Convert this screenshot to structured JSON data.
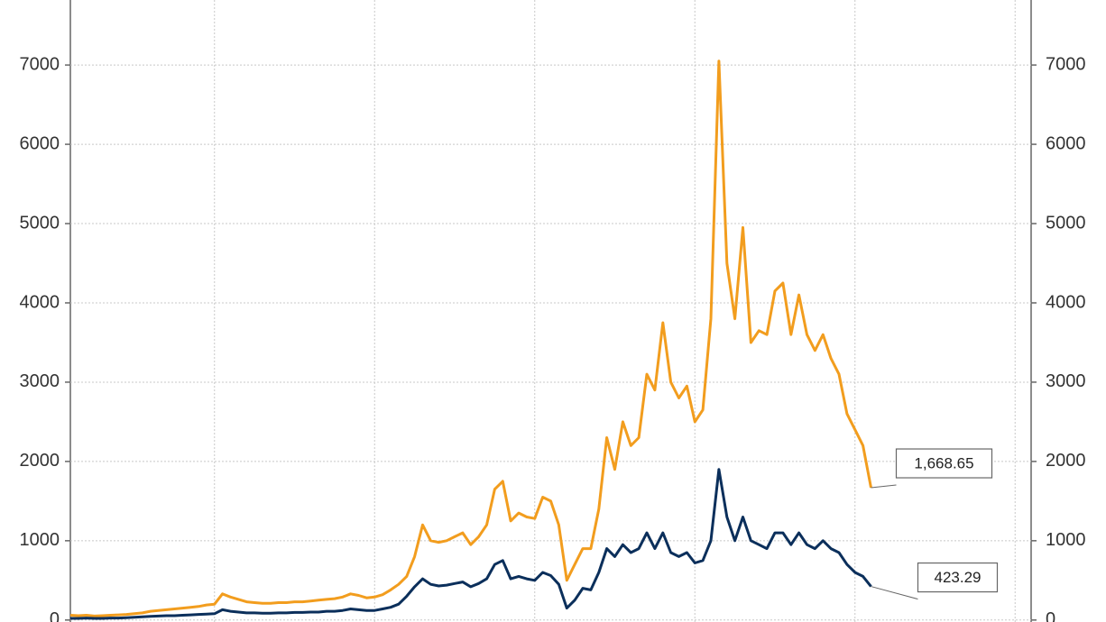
{
  "chart_data": {
    "type": "line",
    "x": [
      0,
      1,
      2,
      3,
      4,
      5,
      6,
      7,
      8,
      9,
      10,
      11,
      12,
      13,
      14,
      15,
      16,
      17,
      18,
      19,
      20,
      21,
      22,
      23,
      24,
      25,
      26,
      27,
      28,
      29,
      30,
      31,
      32,
      33,
      34,
      35,
      36,
      37,
      38,
      39,
      40,
      41,
      42,
      43,
      44,
      45,
      46,
      47,
      48,
      49,
      50,
      51,
      52,
      53,
      54,
      55,
      56,
      57,
      58,
      59,
      60,
      61,
      62,
      63,
      64,
      65,
      66,
      67,
      68,
      69,
      70,
      71,
      72,
      73,
      74,
      75,
      76,
      77,
      78,
      79,
      80,
      81,
      82,
      83,
      84,
      85,
      86,
      87,
      88,
      89,
      90,
      91,
      92,
      93,
      94,
      95,
      96,
      97,
      98,
      99,
      100
    ],
    "xlim": [
      0,
      120
    ],
    "xticks": [
      18,
      38,
      58,
      78,
      98,
      118
    ],
    "ylim": [
      -25,
      7820
    ],
    "yticks": [
      0,
      1000,
      2000,
      3000,
      4000,
      5000,
      6000,
      7000
    ],
    "y2lim": [
      -25,
      7820
    ],
    "y2ticks": [
      0,
      1000,
      2000,
      3000,
      4000,
      5000,
      6000,
      7000
    ],
    "grid": true,
    "series": [
      {
        "color": "#f29d1e",
        "values": [
          60,
          55,
          60,
          50,
          55,
          60,
          65,
          70,
          80,
          90,
          110,
          120,
          130,
          140,
          150,
          160,
          170,
          190,
          200,
          330,
          290,
          260,
          230,
          220,
          210,
          210,
          220,
          220,
          230,
          230,
          240,
          250,
          260,
          270,
          290,
          330,
          310,
          280,
          290,
          320,
          380,
          450,
          550,
          800,
          1200,
          1000,
          980,
          1000,
          1050,
          1100,
          950,
          1050,
          1200,
          1650,
          1750,
          1250,
          1350,
          1300,
          1280,
          1550,
          1500,
          1200,
          500,
          700,
          900,
          900,
          1400,
          2300,
          1900,
          2500,
          2200,
          2300,
          3100,
          2900,
          3750,
          3000,
          2800,
          2950,
          2500,
          2650,
          3800,
          7050,
          4500,
          3800,
          4950,
          3500,
          3650,
          3600,
          4150,
          4250,
          3600,
          4100,
          3600,
          3400,
          3600,
          3300,
          3100,
          2600,
          2400,
          2200,
          1668.65
        ],
        "value_labels": [
          null,
          null,
          null,
          null,
          null,
          null,
          null,
          null,
          null,
          null,
          null,
          null,
          null,
          null,
          null,
          null,
          null,
          null,
          null,
          null,
          null,
          null,
          null,
          null,
          null,
          null,
          null,
          null,
          null,
          null,
          null,
          null,
          null,
          null,
          null,
          null,
          null,
          null,
          null,
          null,
          null,
          null,
          null,
          null,
          null,
          null,
          null,
          null,
          null,
          null,
          null,
          null,
          null,
          null,
          null,
          null,
          null,
          null,
          null,
          null,
          null,
          null,
          null,
          null,
          null,
          null,
          null,
          null,
          null,
          null,
          null,
          null,
          null,
          null,
          null,
          null,
          null,
          null,
          null,
          null,
          null,
          null,
          null,
          null,
          null,
          null,
          null,
          null,
          null,
          null,
          null,
          null,
          null,
          null,
          null,
          null,
          null,
          null,
          null,
          null,
          "1,668.65"
        ]
      },
      {
        "color": "#0b2f5b",
        "values": [
          20,
          20,
          25,
          20,
          20,
          25,
          25,
          30,
          35,
          40,
          45,
          50,
          55,
          55,
          60,
          65,
          70,
          75,
          80,
          130,
          110,
          100,
          90,
          90,
          85,
          85,
          90,
          90,
          95,
          95,
          100,
          100,
          110,
          110,
          120,
          140,
          130,
          120,
          120,
          140,
          160,
          200,
          300,
          420,
          520,
          450,
          430,
          440,
          460,
          480,
          420,
          460,
          520,
          700,
          750,
          520,
          550,
          520,
          500,
          600,
          560,
          450,
          150,
          250,
          400,
          380,
          600,
          900,
          800,
          950,
          850,
          900,
          1100,
          900,
          1100,
          850,
          800,
          850,
          720,
          750,
          1000,
          1900,
          1300,
          1000,
          1300,
          1000,
          950,
          900,
          1100,
          1100,
          950,
          1100,
          950,
          900,
          1000,
          900,
          850,
          700,
          600,
          550,
          423.29
        ],
        "value_labels": [
          null,
          null,
          null,
          null,
          null,
          null,
          null,
          null,
          null,
          null,
          null,
          null,
          null,
          null,
          null,
          null,
          null,
          null,
          null,
          null,
          null,
          null,
          null,
          null,
          null,
          null,
          null,
          null,
          null,
          null,
          null,
          null,
          null,
          null,
          null,
          null,
          null,
          null,
          null,
          null,
          null,
          null,
          null,
          null,
          null,
          null,
          null,
          null,
          null,
          null,
          null,
          null,
          null,
          null,
          null,
          null,
          null,
          null,
          null,
          null,
          null,
          null,
          null,
          null,
          null,
          null,
          null,
          null,
          null,
          null,
          null,
          null,
          null,
          null,
          null,
          null,
          null,
          null,
          null,
          null,
          null,
          null,
          null,
          null,
          null,
          null,
          null,
          null,
          null,
          null,
          null,
          null,
          null,
          null,
          null,
          null,
          null,
          null,
          null,
          null,
          "423.29"
        ]
      }
    ]
  }
}
